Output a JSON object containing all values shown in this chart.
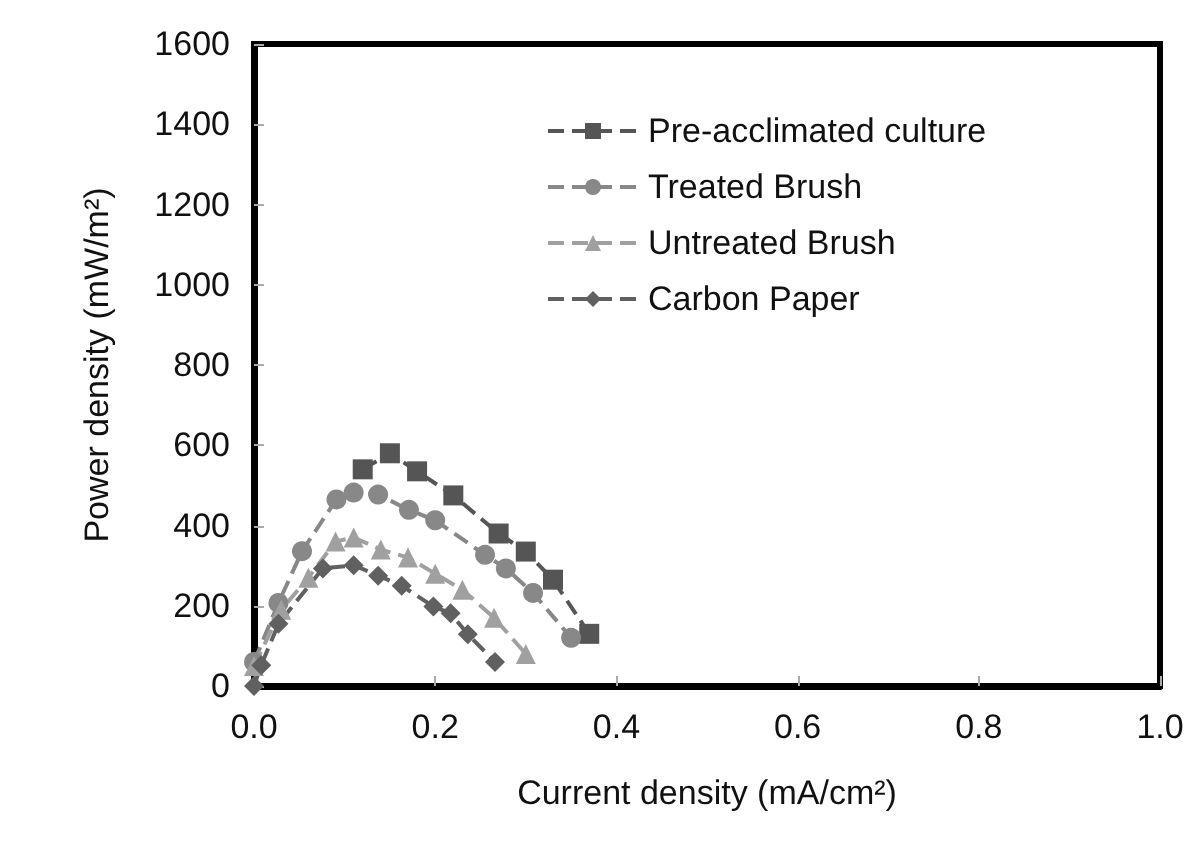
{
  "chart_data": {
    "type": "line",
    "xlabel": "Current density (mA/cm²)",
    "ylabel": "Power density (mW/m²)",
    "xlim": [
      0,
      1.0
    ],
    "xticks": [
      {
        "value": 0,
        "label": "0.0"
      },
      {
        "value": 0.2,
        "label": "0.2"
      },
      {
        "value": 0.4,
        "label": "0.4"
      },
      {
        "value": 0.6,
        "label": "0.6"
      },
      {
        "value": 0.8,
        "label": "0.8"
      },
      {
        "value": 1.0,
        "label": "1.0"
      }
    ],
    "ylim": [
      0,
      1600
    ],
    "yticks": [
      0,
      200,
      400,
      600,
      800,
      1000,
      1200,
      1400,
      1600
    ],
    "grid": false,
    "legend": "top right",
    "line_style": "dashed",
    "series": [
      {
        "name": "Pre-acclimated culture",
        "color": "#555555",
        "marker": "square",
        "x": [
          0.12,
          0.15,
          0.18,
          0.22,
          0.27,
          0.3,
          0.33,
          0.37
        ],
        "values": [
          540,
          580,
          535,
          475,
          380,
          335,
          265,
          130
        ]
      },
      {
        "name": "Treated Brush",
        "color": "#888888",
        "marker": "circle",
        "x": [
          0,
          0.027,
          0.053,
          0.091,
          0.11,
          0.137,
          0.171,
          0.2,
          0.255,
          0.278,
          0.308,
          0.35
        ],
        "values": [
          60,
          207,
          336,
          465,
          482,
          477,
          439,
          413,
          327,
          293,
          232,
          120
        ]
      },
      {
        "name": "Untreated Brush",
        "color": "#a0a0a0",
        "marker": "triangle",
        "x": [
          0,
          0.03,
          0.06,
          0.09,
          0.11,
          0.14,
          0.17,
          0.2,
          0.23,
          0.265,
          0.3
        ],
        "values": [
          50,
          190,
          270,
          360,
          370,
          340,
          320,
          280,
          240,
          170,
          80
        ]
      },
      {
        "name": "Carbon Paper",
        "color": "#606060",
        "marker": "diamond",
        "x": [
          0,
          0.008,
          0.027,
          0.076,
          0.11,
          0.137,
          0.163,
          0.198,
          0.217,
          0.236,
          0.266
        ],
        "values": [
          0,
          52,
          155,
          293,
          301,
          275,
          250,
          198,
          181,
          129,
          60
        ]
      }
    ]
  }
}
